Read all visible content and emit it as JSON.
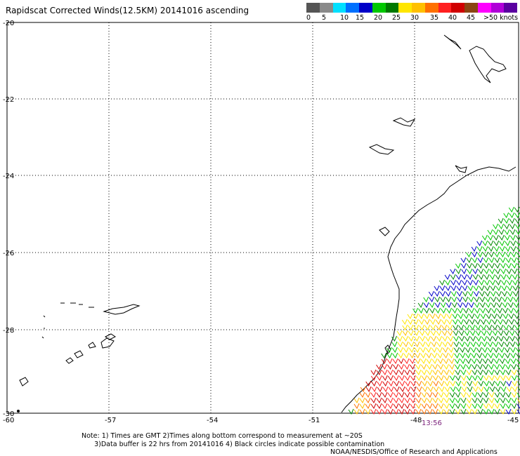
{
  "title": "Rapidscat Corrected Winds(12.5KM) 20141016 ascending",
  "legend": {
    "colors": [
      "#555555",
      "#8a8a8a",
      "#00e0ff",
      "#0070ff",
      "#0000c8",
      "#00c800",
      "#007800",
      "#ffe600",
      "#ffc000",
      "#ff7000",
      "#ff2020",
      "#d00000",
      "#8b4513",
      "#ff00ff",
      "#b000d8",
      "#5a00a0"
    ],
    "labels": [
      "0",
      "5",
      "10",
      "15",
      "20",
      "25",
      "30",
      "35",
      "40",
      "45",
      ">50 knots"
    ]
  },
  "axes": {
    "lat_labels": [
      "-20",
      "-22",
      "-24",
      "-26",
      "-28",
      "-30"
    ],
    "lon_labels": [
      "-60",
      "-57",
      "-54",
      "-51",
      "-48",
      "-45"
    ]
  },
  "time_label": "13:56",
  "notes": {
    "line1": "Note: 1) Times are GMT 2)Times along bottom correspond to measurement at ~20S",
    "line2": "      3)Data buffer is 22 hrs from 20141016 4) Black circles indicate possible contamination",
    "credit": "NOAA/NESDIS/Office of Research and Applications"
  }
}
